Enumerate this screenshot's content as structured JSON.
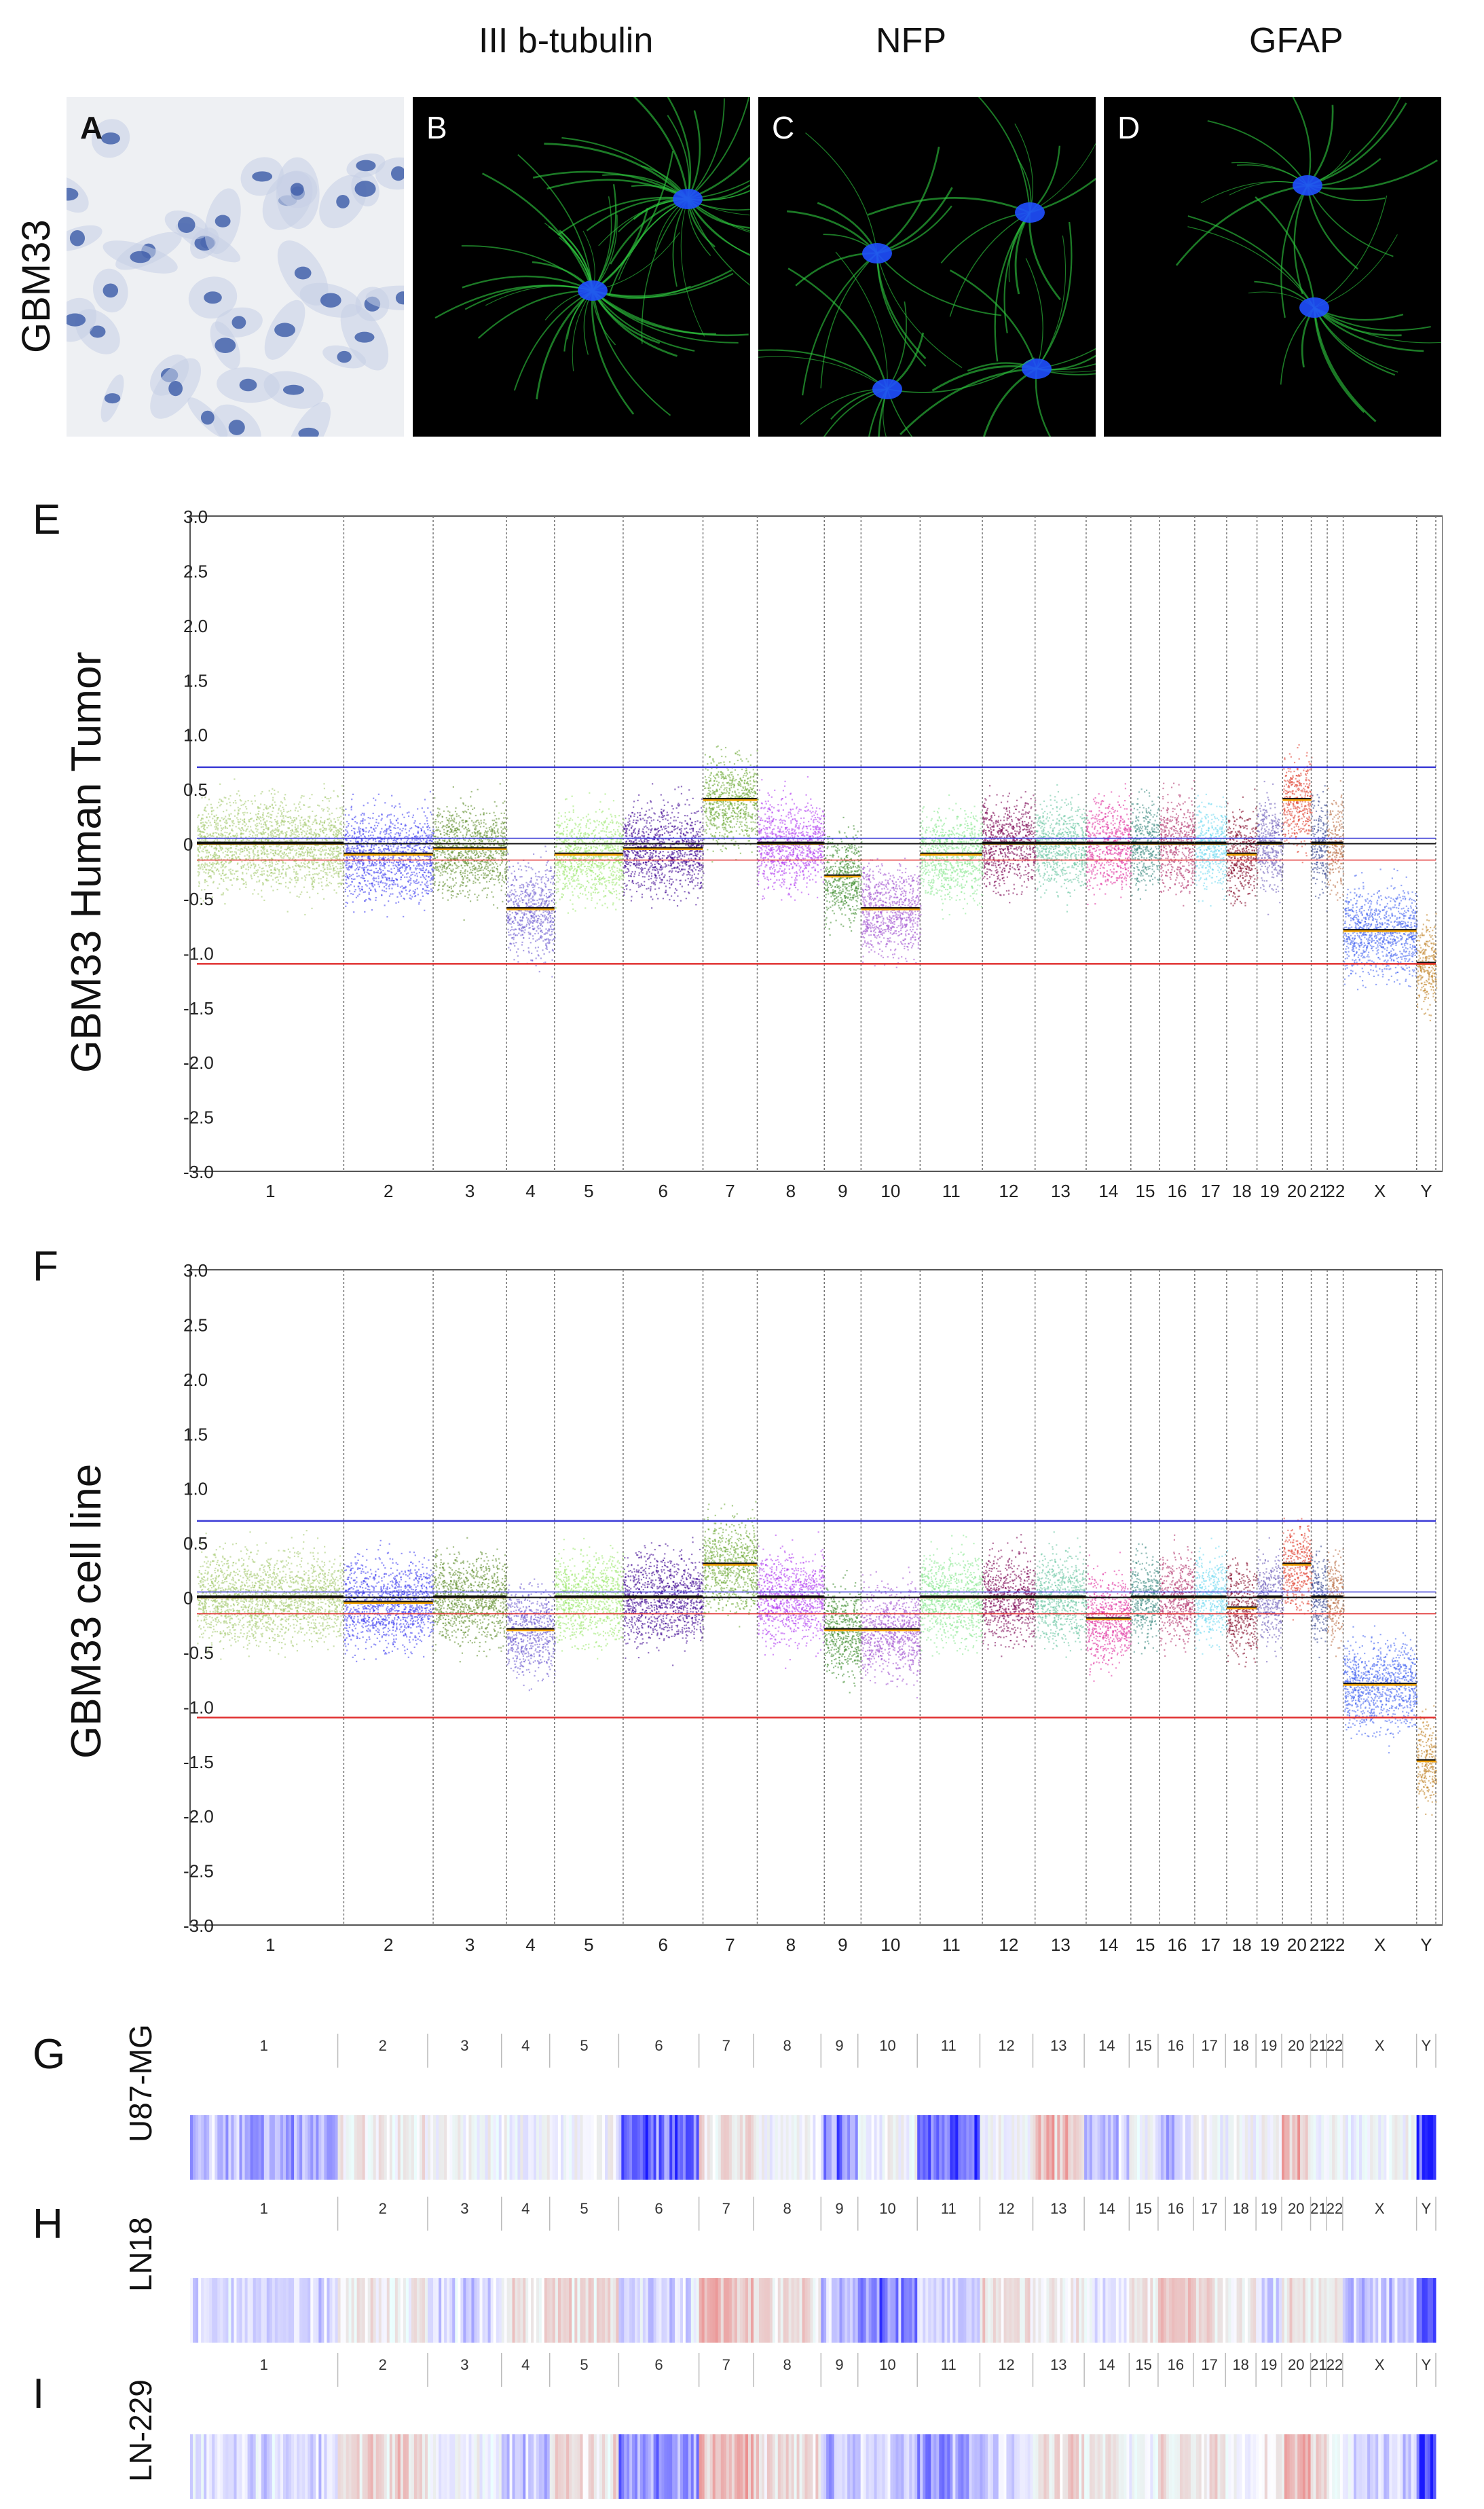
{
  "figure": {
    "column_headers": [
      "III b-tubulin",
      "NFP",
      "GFAP"
    ],
    "row_label": "GBM33",
    "microscopy_panels": [
      {
        "letter": "A",
        "bg": "#eef0f3",
        "kind": "stain"
      },
      {
        "letter": "B",
        "bg": "#000000",
        "kind": "fluor_tubulin"
      },
      {
        "letter": "C",
        "bg": "#000000",
        "kind": "fluor_nfp"
      },
      {
        "letter": "D",
        "bg": "#000000",
        "kind": "fluor_gfap"
      }
    ],
    "colors": {
      "stain_blue": "#3b5aa8",
      "fluor_green": "#2ecc40",
      "nucleus_blue": "#1f4fff",
      "threshold_blue": "#3b3bd6",
      "threshold_red": "#e03030",
      "median_orange": "#f0a000"
    }
  },
  "chart_data": [
    {
      "type": "scatter",
      "panel": "E",
      "ylabel": "GBM33 Human Tumor",
      "ylim": [
        -3.0,
        3.0
      ],
      "yticks": [
        "3.0",
        "2.5",
        "2.0",
        "1.5",
        "1.0",
        "0.5",
        "0",
        "-0.5",
        "-1.0",
        "-1.5",
        "-2.0",
        "-2.5",
        "-3.0"
      ],
      "chromosomes": [
        "1",
        "2",
        "3",
        "4",
        "5",
        "6",
        "7",
        "8",
        "9",
        "10",
        "11",
        "12",
        "13",
        "14",
        "15",
        "16",
        "17",
        "18",
        "19",
        "20",
        "21",
        "22",
        "X",
        "Y"
      ],
      "thresholds": {
        "gain": 0.7,
        "loss": -1.1,
        "upper_small": 0.05,
        "lower_small": -0.15
      },
      "segment_means": [
        0.0,
        -0.1,
        -0.05,
        -0.6,
        -0.1,
        -0.05,
        0.4,
        0.0,
        -0.3,
        -0.6,
        -0.1,
        0.0,
        0.0,
        0.0,
        0.0,
        0.0,
        0.0,
        -0.1,
        0.0,
        0.4,
        0.0,
        0.0,
        -0.8,
        -1.1
      ]
    },
    {
      "type": "scatter",
      "panel": "F",
      "ylabel": "GBM33 cell line",
      "ylim": [
        -3.0,
        3.0
      ],
      "yticks": [
        "3.0",
        "2.5",
        "2.0",
        "1.5",
        "1.0",
        "0.5",
        "0",
        "-0.5",
        "-1.0",
        "-1.5",
        "-2.0",
        "-2.5",
        "-3.0"
      ],
      "chromosomes": [
        "1",
        "2",
        "3",
        "4",
        "5",
        "6",
        "7",
        "8",
        "9",
        "10",
        "11",
        "12",
        "13",
        "14",
        "15",
        "16",
        "17",
        "18",
        "19",
        "20",
        "21",
        "22",
        "X",
        "Y"
      ],
      "thresholds": {
        "gain": 0.7,
        "loss": -1.1,
        "upper_small": 0.05,
        "lower_small": -0.15
      },
      "segment_means": [
        0.0,
        -0.05,
        0.0,
        -0.3,
        0.0,
        0.0,
        0.3,
        0.0,
        -0.3,
        -0.3,
        0.0,
        0.0,
        0.0,
        -0.2,
        0.0,
        0.0,
        0.0,
        -0.1,
        0.0,
        0.3,
        0.0,
        0.0,
        -0.8,
        -1.5
      ]
    },
    {
      "type": "heatmap",
      "panel": "G",
      "label": "U87-MG",
      "chromosomes": [
        "1",
        "2",
        "3",
        "4",
        "5",
        "6",
        "7",
        "8",
        "9",
        "10",
        "11",
        "12",
        "13",
        "14",
        "15",
        "16",
        "17",
        "18",
        "19",
        "20",
        "21",
        "22",
        "X",
        "Y"
      ],
      "values": [
        -0.4,
        0.1,
        0.0,
        0.0,
        0.0,
        -0.7,
        0.2,
        0.0,
        -0.6,
        0.0,
        -0.7,
        0.0,
        0.4,
        -0.3,
        0.0,
        -0.3,
        0.0,
        0.0,
        0.0,
        0.4,
        0.0,
        0.0,
        0.0,
        -1.0
      ]
    },
    {
      "type": "heatmap",
      "panel": "H",
      "label": "LN18",
      "chromosomes": [
        "1",
        "2",
        "3",
        "4",
        "5",
        "6",
        "7",
        "8",
        "9",
        "10",
        "11",
        "12",
        "13",
        "14",
        "15",
        "16",
        "17",
        "18",
        "19",
        "20",
        "21",
        "22",
        "X",
        "Y"
      ],
      "values": [
        -0.2,
        0.1,
        -0.2,
        0.2,
        0.2,
        -0.2,
        0.4,
        0.2,
        -0.3,
        -0.6,
        -0.2,
        0.2,
        0.1,
        -0.1,
        0.1,
        0.4,
        0.2,
        0.1,
        -0.2,
        0.2,
        0.1,
        0.1,
        -0.3,
        -0.8
      ]
    },
    {
      "type": "heatmap",
      "panel": "I",
      "label": "LN-229",
      "chromosomes": [
        "1",
        "2",
        "3",
        "4",
        "5",
        "6",
        "7",
        "8",
        "9",
        "10",
        "11",
        "12",
        "13",
        "14",
        "15",
        "16",
        "17",
        "18",
        "19",
        "20",
        "21",
        "22",
        "X",
        "Y"
      ],
      "values": [
        -0.2,
        0.3,
        0.0,
        -0.3,
        0.2,
        -0.6,
        0.4,
        0.2,
        -0.3,
        -0.2,
        -0.5,
        -0.2,
        0.2,
        0.1,
        0.0,
        0.2,
        0.2,
        0.0,
        0.1,
        0.4,
        0.2,
        0.1,
        -0.2,
        -1.0
      ]
    }
  ]
}
